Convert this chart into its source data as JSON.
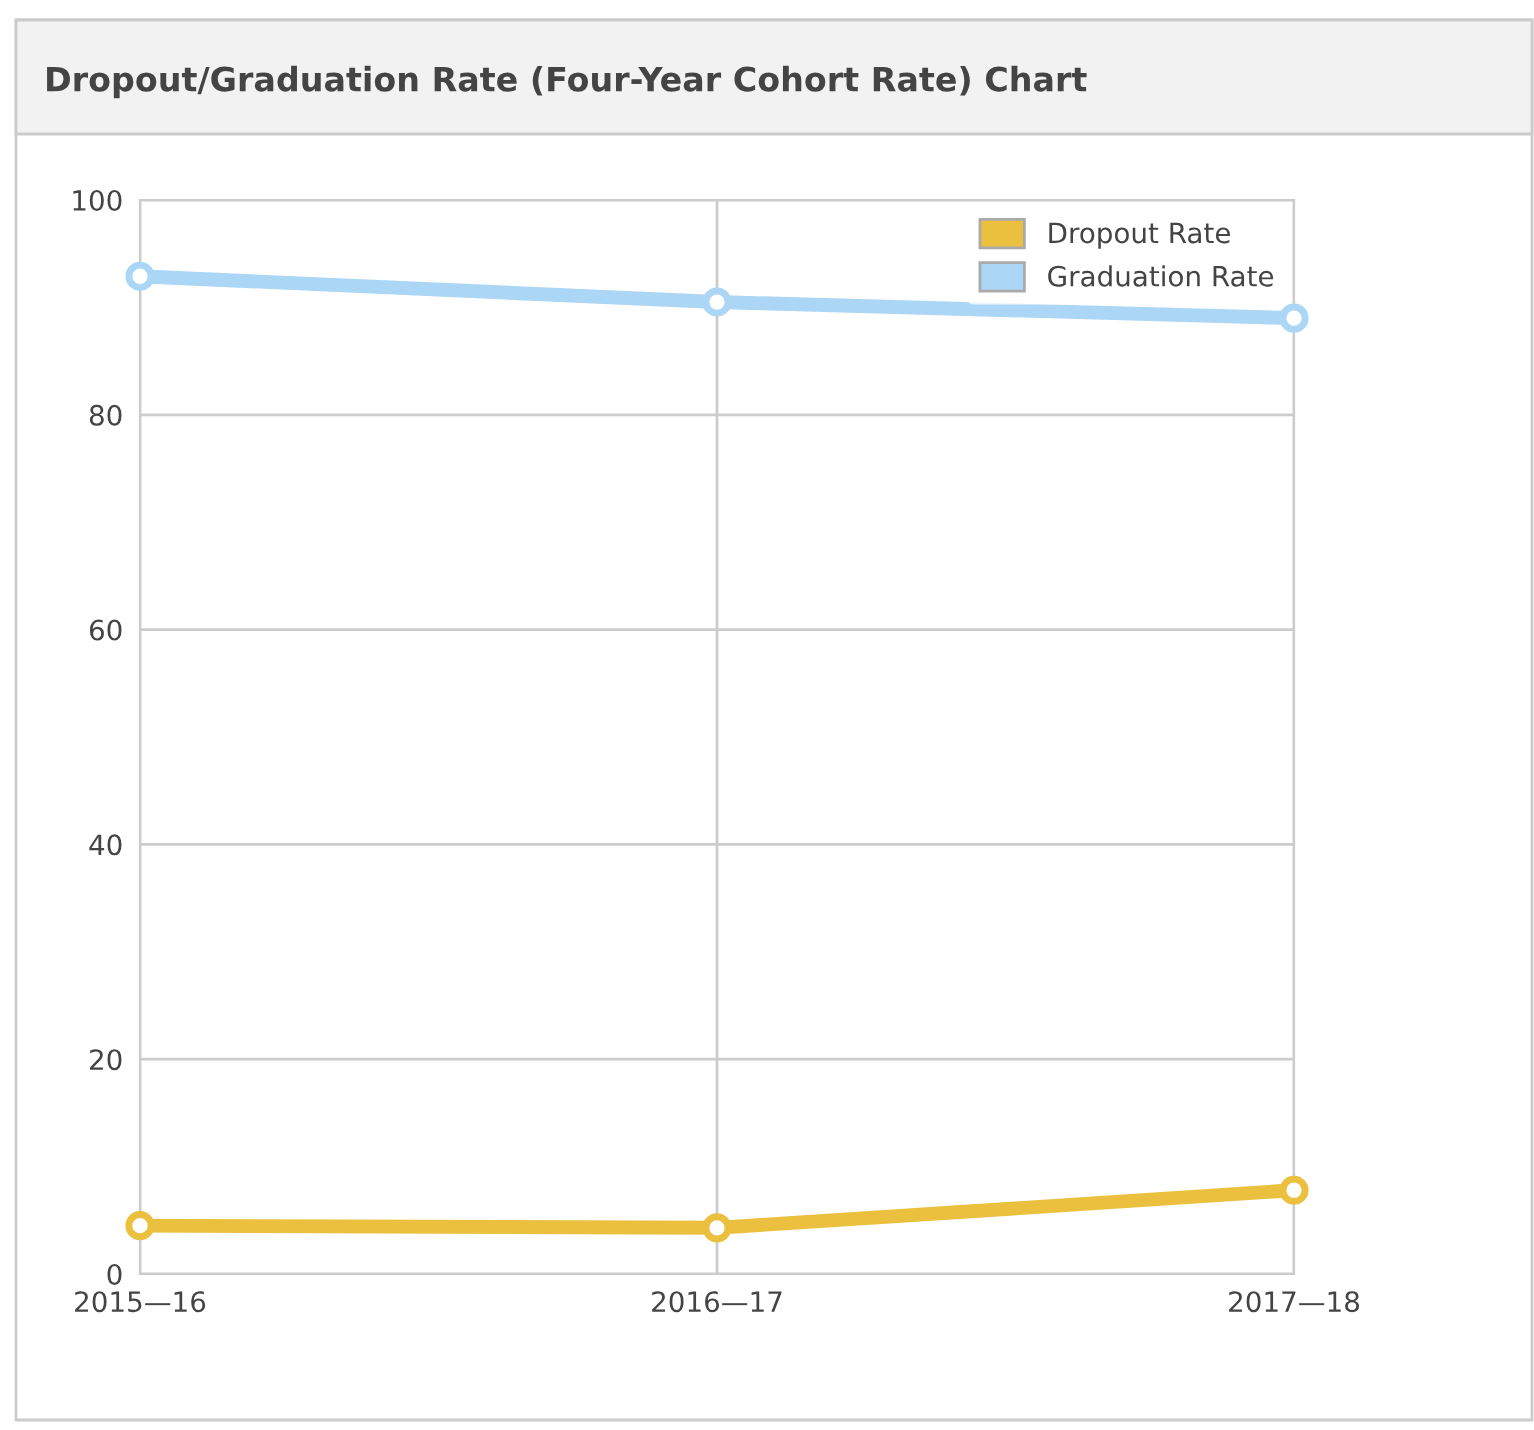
{
  "chart_data": {
    "type": "line",
    "title": "Dropout/Graduation Rate (Four-Year Cohort Rate) Chart",
    "categories": [
      "2015—16",
      "2016—17",
      "2017—18"
    ],
    "series": [
      {
        "name": "Dropout Rate",
        "color": "#ebc03f",
        "values": [
          4.5,
          4.3,
          7.8
        ]
      },
      {
        "name": "Graduation Rate",
        "color": "#acd6f5",
        "values": [
          92.9,
          90.5,
          89.0
        ]
      }
    ],
    "ylim": [
      0,
      100
    ],
    "yticks": [
      0,
      20,
      40,
      60,
      80,
      100
    ],
    "grid": true,
    "legend": "top right",
    "marker": "circle"
  }
}
